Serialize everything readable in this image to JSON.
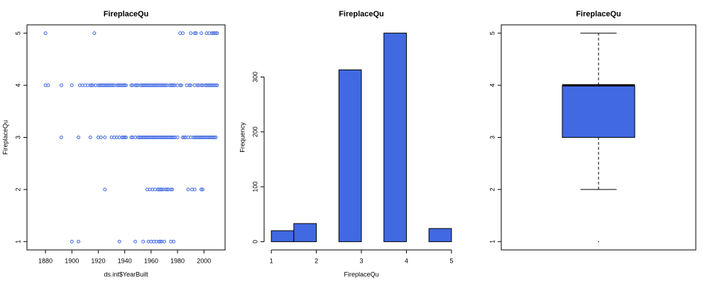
{
  "chart_data": [
    {
      "type": "scatter",
      "title": "FireplaceQu",
      "xlabel": "ds.int$YearBuilt",
      "ylabel": "FireplaceQu",
      "color": "#4169e1",
      "x": [
        1880,
        1917,
        1982,
        1984,
        1990,
        1993,
        1994,
        1998,
        2002,
        2004,
        2006,
        2007,
        2008,
        2009,
        2010,
        1880,
        1882,
        1892,
        1900,
        1906,
        1908,
        1910,
        1912,
        1914,
        1915,
        1916,
        1918,
        1920,
        1921,
        1922,
        1923,
        1924,
        1925,
        1926,
        1927,
        1928,
        1929,
        1930,
        1931,
        1932,
        1934,
        1935,
        1936,
        1937,
        1938,
        1939,
        1940,
        1941,
        1945,
        1946,
        1948,
        1949,
        1950,
        1952,
        1953,
        1954,
        1955,
        1956,
        1957,
        1958,
        1959,
        1960,
        1961,
        1962,
        1963,
        1964,
        1965,
        1966,
        1967,
        1968,
        1969,
        1970,
        1971,
        1972,
        1974,
        1975,
        1976,
        1977,
        1978,
        1980,
        1982,
        1983,
        1987,
        1989,
        1990,
        1993,
        1995,
        1996,
        1998,
        1999,
        2001,
        2002,
        2003,
        2004,
        2005,
        2006,
        2007,
        2008,
        2009,
        2010,
        1892,
        1905,
        1914,
        1920,
        1922,
        1925,
        1930,
        1932,
        1934,
        1936,
        1938,
        1939,
        1940,
        1941,
        1945,
        1946,
        1948,
        1950,
        1951,
        1952,
        1953,
        1954,
        1955,
        1956,
        1957,
        1958,
        1959,
        1960,
        1961,
        1962,
        1963,
        1964,
        1965,
        1966,
        1967,
        1968,
        1969,
        1970,
        1971,
        1972,
        1973,
        1974,
        1975,
        1976,
        1977,
        1978,
        1980,
        1984,
        1985,
        1986,
        1988,
        1990,
        1992,
        1993,
        1994,
        1995,
        1996,
        1997,
        1998,
        1999,
        2000,
        2001,
        2002,
        2003,
        2004,
        2005,
        2006,
        2007,
        2008,
        2009,
        1925,
        1957,
        1959,
        1961,
        1963,
        1965,
        1966,
        1967,
        1968,
        1969,
        1971,
        1972,
        1973,
        1975,
        1976,
        1988,
        1991,
        1993,
        1998,
        1999,
        1900,
        1905,
        1936,
        1948,
        1954,
        1958,
        1960,
        1962,
        1964,
        1966,
        1967,
        1968,
        1970,
        1975,
        1977
      ],
      "values": [
        5,
        5,
        5,
        5,
        5,
        5,
        5,
        5,
        5,
        5,
        5,
        5,
        5,
        5,
        5,
        4,
        4,
        4,
        4,
        4,
        4,
        4,
        4,
        4,
        4,
        4,
        4,
        4,
        4,
        4,
        4,
        4,
        4,
        4,
        4,
        4,
        4,
        4,
        4,
        4,
        4,
        4,
        4,
        4,
        4,
        4,
        4,
        4,
        4,
        4,
        4,
        4,
        4,
        4,
        4,
        4,
        4,
        4,
        4,
        4,
        4,
        4,
        4,
        4,
        4,
        4,
        4,
        4,
        4,
        4,
        4,
        4,
        4,
        4,
        4,
        4,
        4,
        4,
        4,
        4,
        4,
        4,
        4,
        4,
        4,
        4,
        4,
        4,
        4,
        4,
        4,
        4,
        4,
        4,
        4,
        4,
        4,
        4,
        4,
        4,
        3,
        3,
        3,
        3,
        3,
        3,
        3,
        3,
        3,
        3,
        3,
        3,
        3,
        3,
        3,
        3,
        3,
        3,
        3,
        3,
        3,
        3,
        3,
        3,
        3,
        3,
        3,
        3,
        3,
        3,
        3,
        3,
        3,
        3,
        3,
        3,
        3,
        3,
        3,
        3,
        3,
        3,
        3,
        3,
        3,
        3,
        3,
        3,
        3,
        3,
        3,
        3,
        3,
        3,
        3,
        3,
        3,
        3,
        3,
        3,
        3,
        3,
        3,
        3,
        3,
        3,
        3,
        3,
        3,
        3,
        2,
        2,
        2,
        2,
        2,
        2,
        2,
        2,
        2,
        2,
        2,
        2,
        2,
        2,
        2,
        2,
        2,
        2,
        2,
        2,
        1,
        1,
        1,
        1,
        1,
        1,
        1,
        1,
        1,
        1,
        1,
        1,
        1,
        1,
        1
      ],
      "xlim": [
        1866,
        2016
      ],
      "xticks": [
        1880,
        1900,
        1920,
        1940,
        1960,
        1980,
        2000
      ],
      "ylim": [
        0.84,
        5.16
      ],
      "yticks": [
        1,
        2,
        3,
        4,
        5
      ]
    },
    {
      "type": "histogram",
      "title": "FireplaceQu",
      "xlabel": "FireplaceQu",
      "ylabel": "Frequency",
      "color": "#4169e1",
      "bins": [
        1,
        1.5,
        2,
        2.5,
        3,
        3.5,
        4,
        4.5,
        5
      ],
      "counts": [
        20,
        33,
        0,
        313,
        0,
        380,
        0,
        24
      ],
      "xlim": [
        0.84,
        5.16
      ],
      "xticks": [
        1,
        2,
        3,
        4,
        5
      ],
      "ylim": [
        -15,
        395
      ],
      "yticks": [
        0,
        100,
        200,
        300
      ]
    },
    {
      "type": "box",
      "title": "FireplaceQu",
      "color": "#4169e1",
      "whisker_low": 2,
      "q1": 3,
      "median": 4,
      "q3": 4,
      "whisker_high": 5,
      "outliers": [
        1
      ],
      "ylim": [
        0.84,
        5.16
      ],
      "yticks": [
        1,
        2,
        3,
        4,
        5
      ]
    }
  ]
}
